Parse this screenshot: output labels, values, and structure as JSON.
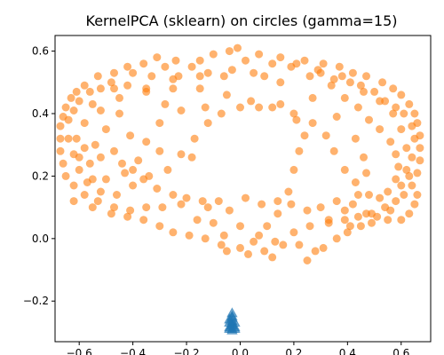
{
  "chart_data": {
    "type": "scatter",
    "title": "KernelPCA (sklearn) on circles (gamma=15)",
    "xlabel": "",
    "ylabel": "",
    "xlim": [
      -0.69,
      0.71
    ],
    "ylim": [
      -0.33,
      0.65
    ],
    "xticks": [
      -0.6,
      -0.4,
      -0.2,
      0.0,
      0.2,
      0.4,
      0.6
    ],
    "xtick_labels": [
      "−0.6",
      "−0.4",
      "−0.2",
      "0.0",
      "0.2",
      "0.4",
      "0.6"
    ],
    "yticks": [
      -0.2,
      0.0,
      0.2,
      0.4,
      0.6
    ],
    "ytick_labels": [
      "−0.2",
      "0.0",
      "0.2",
      "0.4",
      "0.6"
    ],
    "grid": false,
    "colors": {
      "outer": "#ff7f0e",
      "inner": "#1f77b4"
    },
    "series": [
      {
        "marker": "circle",
        "points": [
          [
            -0.01,
            0.61
          ],
          [
            -0.04,
            0.6
          ],
          [
            -0.1,
            0.59
          ],
          [
            0.07,
            0.59
          ],
          [
            0.15,
            0.58
          ],
          [
            -0.15,
            0.57
          ],
          [
            -0.24,
            0.57
          ],
          [
            -0.31,
            0.58
          ],
          [
            0.24,
            0.57
          ],
          [
            0.31,
            0.56
          ],
          [
            -0.36,
            0.56
          ],
          [
            0.37,
            0.55
          ],
          [
            0.29,
            0.54
          ],
          [
            -0.42,
            0.55
          ],
          [
            -0.47,
            0.53
          ],
          [
            0.42,
            0.53
          ],
          [
            -0.53,
            0.52
          ],
          [
            0.47,
            0.52
          ],
          [
            -0.58,
            0.49
          ],
          [
            0.53,
            0.5
          ],
          [
            -0.61,
            0.47
          ],
          [
            0.57,
            0.48
          ],
          [
            -0.63,
            0.45
          ],
          [
            0.6,
            0.46
          ],
          [
            -0.65,
            0.42
          ],
          [
            0.63,
            0.43
          ],
          [
            -0.66,
            0.39
          ],
          [
            0.65,
            0.4
          ],
          [
            -0.67,
            0.36
          ],
          [
            0.66,
            0.37
          ],
          [
            -0.67,
            0.32
          ],
          [
            0.67,
            0.33
          ],
          [
            -0.67,
            0.28
          ],
          [
            0.67,
            0.29
          ],
          [
            -0.66,
            0.24
          ],
          [
            0.67,
            0.25
          ],
          [
            -0.65,
            0.2
          ],
          [
            0.66,
            0.21
          ],
          [
            -0.62,
            0.17
          ],
          [
            0.64,
            0.17
          ],
          [
            -0.58,
            0.14
          ],
          [
            0.61,
            0.14
          ],
          [
            -0.53,
            0.12
          ],
          [
            0.58,
            0.12
          ],
          [
            -0.47,
            0.1
          ],
          [
            0.54,
            0.1
          ],
          [
            -0.41,
            0.09
          ],
          [
            0.49,
            0.08
          ],
          [
            -0.35,
            0.1
          ],
          [
            0.44,
            0.07
          ],
          [
            -0.29,
            0.1
          ],
          [
            0.39,
            0.06
          ],
          [
            0.33,
            0.05
          ],
          [
            -0.22,
            0.11
          ],
          [
            0.26,
            0.04
          ],
          [
            -0.12,
            0.1
          ],
          [
            0.2,
            0.02
          ],
          [
            -0.04,
            0.09
          ],
          [
            0.13,
            -0.01
          ],
          [
            0.07,
            0.01
          ],
          [
            0.0,
            0.04
          ],
          [
            -0.06,
            0.01
          ],
          [
            -0.1,
            0.05
          ],
          [
            -0.16,
            0.06
          ],
          [
            -0.41,
            0.33
          ],
          [
            -0.3,
            0.28
          ],
          [
            -0.18,
            0.26
          ],
          [
            -0.35,
            0.48
          ],
          [
            -0.23,
            0.52
          ],
          [
            -0.12,
            0.53
          ],
          [
            -0.03,
            0.54
          ],
          [
            0.09,
            0.52
          ],
          [
            0.19,
            0.55
          ],
          [
            0.26,
            0.52
          ],
          [
            0.34,
            0.49
          ],
          [
            0.39,
            0.45
          ],
          [
            0.44,
            0.42
          ],
          [
            0.48,
            0.38
          ],
          [
            0.52,
            0.35
          ],
          [
            0.56,
            0.31
          ],
          [
            0.58,
            0.27
          ],
          [
            0.59,
            0.23
          ],
          [
            0.58,
            0.19
          ],
          [
            0.55,
            0.15
          ],
          [
            0.52,
            0.13
          ],
          [
            0.48,
            0.14
          ],
          [
            0.43,
            0.18
          ],
          [
            0.39,
            0.22
          ],
          [
            0.35,
            0.28
          ],
          [
            0.32,
            0.33
          ],
          [
            0.27,
            0.37
          ],
          [
            0.2,
            0.4
          ],
          [
            0.12,
            0.42
          ],
          [
            0.04,
            0.44
          ],
          [
            -0.05,
            0.46
          ],
          [
            -0.15,
            0.48
          ],
          [
            -0.25,
            0.48
          ],
          [
            -0.35,
            0.47
          ],
          [
            -0.45,
            0.45
          ],
          [
            -0.52,
            0.41
          ],
          [
            -0.58,
            0.37
          ],
          [
            -0.61,
            0.32
          ],
          [
            -0.62,
            0.27
          ],
          [
            -0.6,
            0.22
          ],
          [
            -0.57,
            0.18
          ],
          [
            -0.52,
            0.15
          ],
          [
            -0.46,
            0.14
          ],
          [
            -0.4,
            0.17
          ],
          [
            -0.34,
            0.2
          ],
          [
            -0.27,
            0.22
          ],
          [
            -0.22,
            0.27
          ],
          [
            -0.17,
            0.32
          ],
          [
            -0.12,
            0.37
          ],
          [
            -0.07,
            0.4
          ],
          [
            0.0,
            0.42
          ],
          [
            0.07,
            0.42
          ],
          [
            0.15,
            0.43
          ],
          [
            0.21,
            0.38
          ],
          [
            0.24,
            0.33
          ],
          [
            0.22,
            0.28
          ],
          [
            0.2,
            0.22
          ],
          [
            0.18,
            0.15
          ],
          [
            0.14,
            0.08
          ],
          [
            0.1,
            0.04
          ],
          [
            0.05,
            -0.01
          ],
          [
            0.0,
            -0.03
          ],
          [
            -0.05,
            -0.04
          ],
          [
            0.22,
            -0.02
          ],
          [
            0.28,
            -0.04
          ],
          [
            0.31,
            -0.03
          ],
          [
            0.36,
            0.0
          ],
          [
            0.4,
            0.02
          ],
          [
            0.45,
            0.04
          ],
          [
            0.49,
            0.05
          ],
          [
            0.55,
            0.06
          ],
          [
            0.6,
            0.06
          ],
          [
            0.63,
            0.08
          ],
          [
            0.65,
            0.11
          ],
          [
            0.66,
            0.14
          ],
          [
            0.62,
            0.22
          ],
          [
            0.62,
            0.29
          ],
          [
            0.6,
            0.35
          ],
          [
            0.57,
            0.4
          ],
          [
            0.52,
            0.44
          ],
          [
            0.46,
            0.47
          ],
          [
            0.41,
            0.5
          ],
          [
            0.35,
            0.51
          ],
          [
            -0.45,
            0.4
          ],
          [
            -0.5,
            0.35
          ],
          [
            -0.54,
            0.3
          ],
          [
            -0.56,
            0.24
          ],
          [
            -0.55,
            0.19
          ],
          [
            -0.5,
            0.19
          ],
          [
            -0.43,
            0.21
          ],
          [
            -0.38,
            0.25
          ],
          [
            -0.35,
            0.31
          ],
          [
            -0.3,
            0.37
          ],
          [
            -0.28,
            0.43
          ],
          [
            -0.22,
            0.41
          ],
          [
            -0.13,
            0.42
          ],
          [
            0.27,
            0.45
          ],
          [
            0.36,
            0.39
          ],
          [
            0.43,
            0.32
          ],
          [
            0.46,
            0.26
          ],
          [
            0.47,
            0.21
          ],
          [
            0.44,
            0.14
          ],
          [
            0.39,
            0.09
          ],
          [
            0.33,
            0.06
          ],
          [
            0.25,
            0.09
          ],
          [
            0.19,
            0.11
          ],
          [
            -0.55,
            0.43
          ],
          [
            -0.48,
            0.5
          ],
          [
            -0.4,
            0.53
          ],
          [
            -0.28,
            0.55
          ],
          [
            -0.18,
            0.55
          ],
          [
            0.02,
            0.57
          ],
          [
            0.12,
            0.56
          ],
          [
            0.21,
            0.56
          ],
          [
            0.3,
            0.53
          ],
          [
            0.38,
            0.52
          ],
          [
            0.45,
            0.49
          ],
          [
            0.5,
            0.47
          ],
          [
            0.54,
            0.44
          ],
          [
            0.58,
            0.42
          ],
          [
            0.61,
            0.4
          ],
          [
            0.64,
            0.36
          ],
          [
            0.65,
            0.32
          ],
          [
            0.64,
            0.26
          ],
          [
            0.63,
            0.2
          ],
          [
            0.6,
            0.17
          ],
          [
            0.56,
            0.09
          ],
          [
            0.51,
            0.07
          ],
          [
            0.47,
            0.08
          ],
          [
            0.42,
            0.11
          ],
          [
            -0.64,
            0.32
          ],
          [
            -0.64,
            0.38
          ],
          [
            -0.62,
            0.41
          ],
          [
            -0.6,
            0.44
          ],
          [
            -0.56,
            0.47
          ],
          [
            -0.52,
            0.48
          ],
          [
            -0.47,
            0.48
          ],
          [
            -0.42,
            0.49
          ],
          [
            -0.33,
            0.52
          ],
          [
            -0.25,
            0.51
          ],
          [
            -0.15,
            0.52
          ],
          [
            -0.06,
            0.52
          ],
          [
            0.05,
            0.53
          ],
          [
            0.15,
            0.5
          ],
          [
            -0.6,
            0.26
          ],
          [
            -0.58,
            0.29
          ],
          [
            -0.52,
            0.26
          ],
          [
            -0.47,
            0.28
          ],
          [
            -0.44,
            0.24
          ],
          [
            -0.4,
            0.22
          ],
          [
            -0.36,
            0.19
          ],
          [
            -0.31,
            0.16
          ],
          [
            -0.25,
            0.14
          ],
          [
            -0.2,
            0.13
          ],
          [
            -0.14,
            0.12
          ],
          [
            -0.08,
            0.12
          ],
          [
            0.02,
            0.13
          ],
          [
            0.08,
            0.11
          ],
          [
            0.14,
            0.12
          ],
          [
            0.3,
            0.1
          ],
          [
            0.36,
            0.12
          ],
          [
            0.41,
            0.04
          ],
          [
            -0.62,
            0.12
          ],
          [
            -0.55,
            0.1
          ],
          [
            -0.48,
            0.08
          ],
          [
            -0.42,
            0.07
          ],
          [
            -0.36,
            0.06
          ],
          [
            -0.3,
            0.04
          ],
          [
            -0.25,
            0.02
          ],
          [
            -0.19,
            0.01
          ],
          [
            -0.13,
            0.0
          ],
          [
            -0.07,
            -0.02
          ],
          [
            0.03,
            -0.05
          ],
          [
            0.09,
            -0.04
          ],
          [
            0.16,
            -0.02
          ],
          [
            0.25,
            -0.07
          ],
          [
            0.12,
            -0.06
          ]
        ]
      },
      {
        "marker": "triangle",
        "points": [
          [
            -0.03,
            -0.24
          ],
          [
            -0.03,
            -0.25
          ],
          [
            -0.03,
            -0.255
          ],
          [
            -0.04,
            -0.26
          ],
          [
            -0.03,
            -0.265
          ],
          [
            -0.02,
            -0.27
          ],
          [
            -0.04,
            -0.27
          ],
          [
            -0.03,
            -0.275
          ],
          [
            -0.03,
            -0.28
          ],
          [
            -0.04,
            -0.285
          ],
          [
            -0.02,
            -0.285
          ],
          [
            -0.03,
            -0.29
          ],
          [
            -0.04,
            -0.29
          ],
          [
            -0.02,
            -0.29
          ],
          [
            -0.03,
            -0.295
          ]
        ]
      }
    ]
  }
}
